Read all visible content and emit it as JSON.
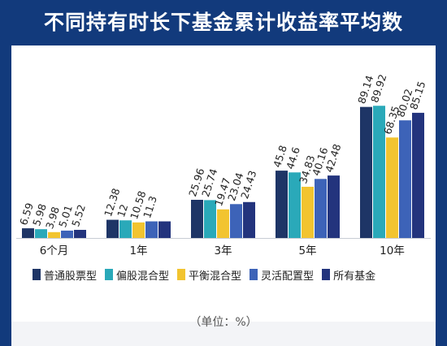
{
  "chart_data": {
    "type": "bar",
    "title": "不同持有时长下基金累计收益率平均数",
    "unit_note": "（单位：%）",
    "categories": [
      "6个月",
      "1年",
      "3年",
      "5年",
      "10年"
    ],
    "series": [
      {
        "name": "普通股票型",
        "color": "#1e3566",
        "values": [
          6.59,
          12.38,
          25.96,
          45.8,
          89.14
        ]
      },
      {
        "name": "偏股混合型",
        "color": "#2aa9b9",
        "values": [
          5.98,
          12.0,
          25.74,
          44.6,
          89.92
        ]
      },
      {
        "name": "平衡混合型",
        "color": "#f2c430",
        "values": [
          3.98,
          10.58,
          19.47,
          34.83,
          68.35
        ]
      },
      {
        "name": "灵活配置型",
        "color": "#3d63b8",
        "values": [
          5.01,
          11.3,
          23.04,
          40.16,
          80.02
        ]
      },
      {
        "name": "所有基金",
        "color": "#23347d",
        "values": [
          5.52,
          11.3,
          24.43,
          42.48,
          85.15
        ]
      }
    ],
    "data_labels": [
      [
        "6.59",
        "5.98",
        "3.98",
        "5.01",
        "5.52"
      ],
      [
        "12.38",
        "12",
        "10.58",
        "11.3",
        ""
      ],
      [
        "25.96",
        "25.74",
        "19.47",
        "23.04",
        "24.43"
      ],
      [
        "45.8",
        "44.6",
        "34.83",
        "40.16",
        "42.48"
      ],
      [
        "89.14",
        "89.92",
        "68.35",
        "80.02",
        "85.15"
      ]
    ],
    "ylim": [
      0,
      100
    ],
    "grid": false,
    "legend": "bottom"
  }
}
